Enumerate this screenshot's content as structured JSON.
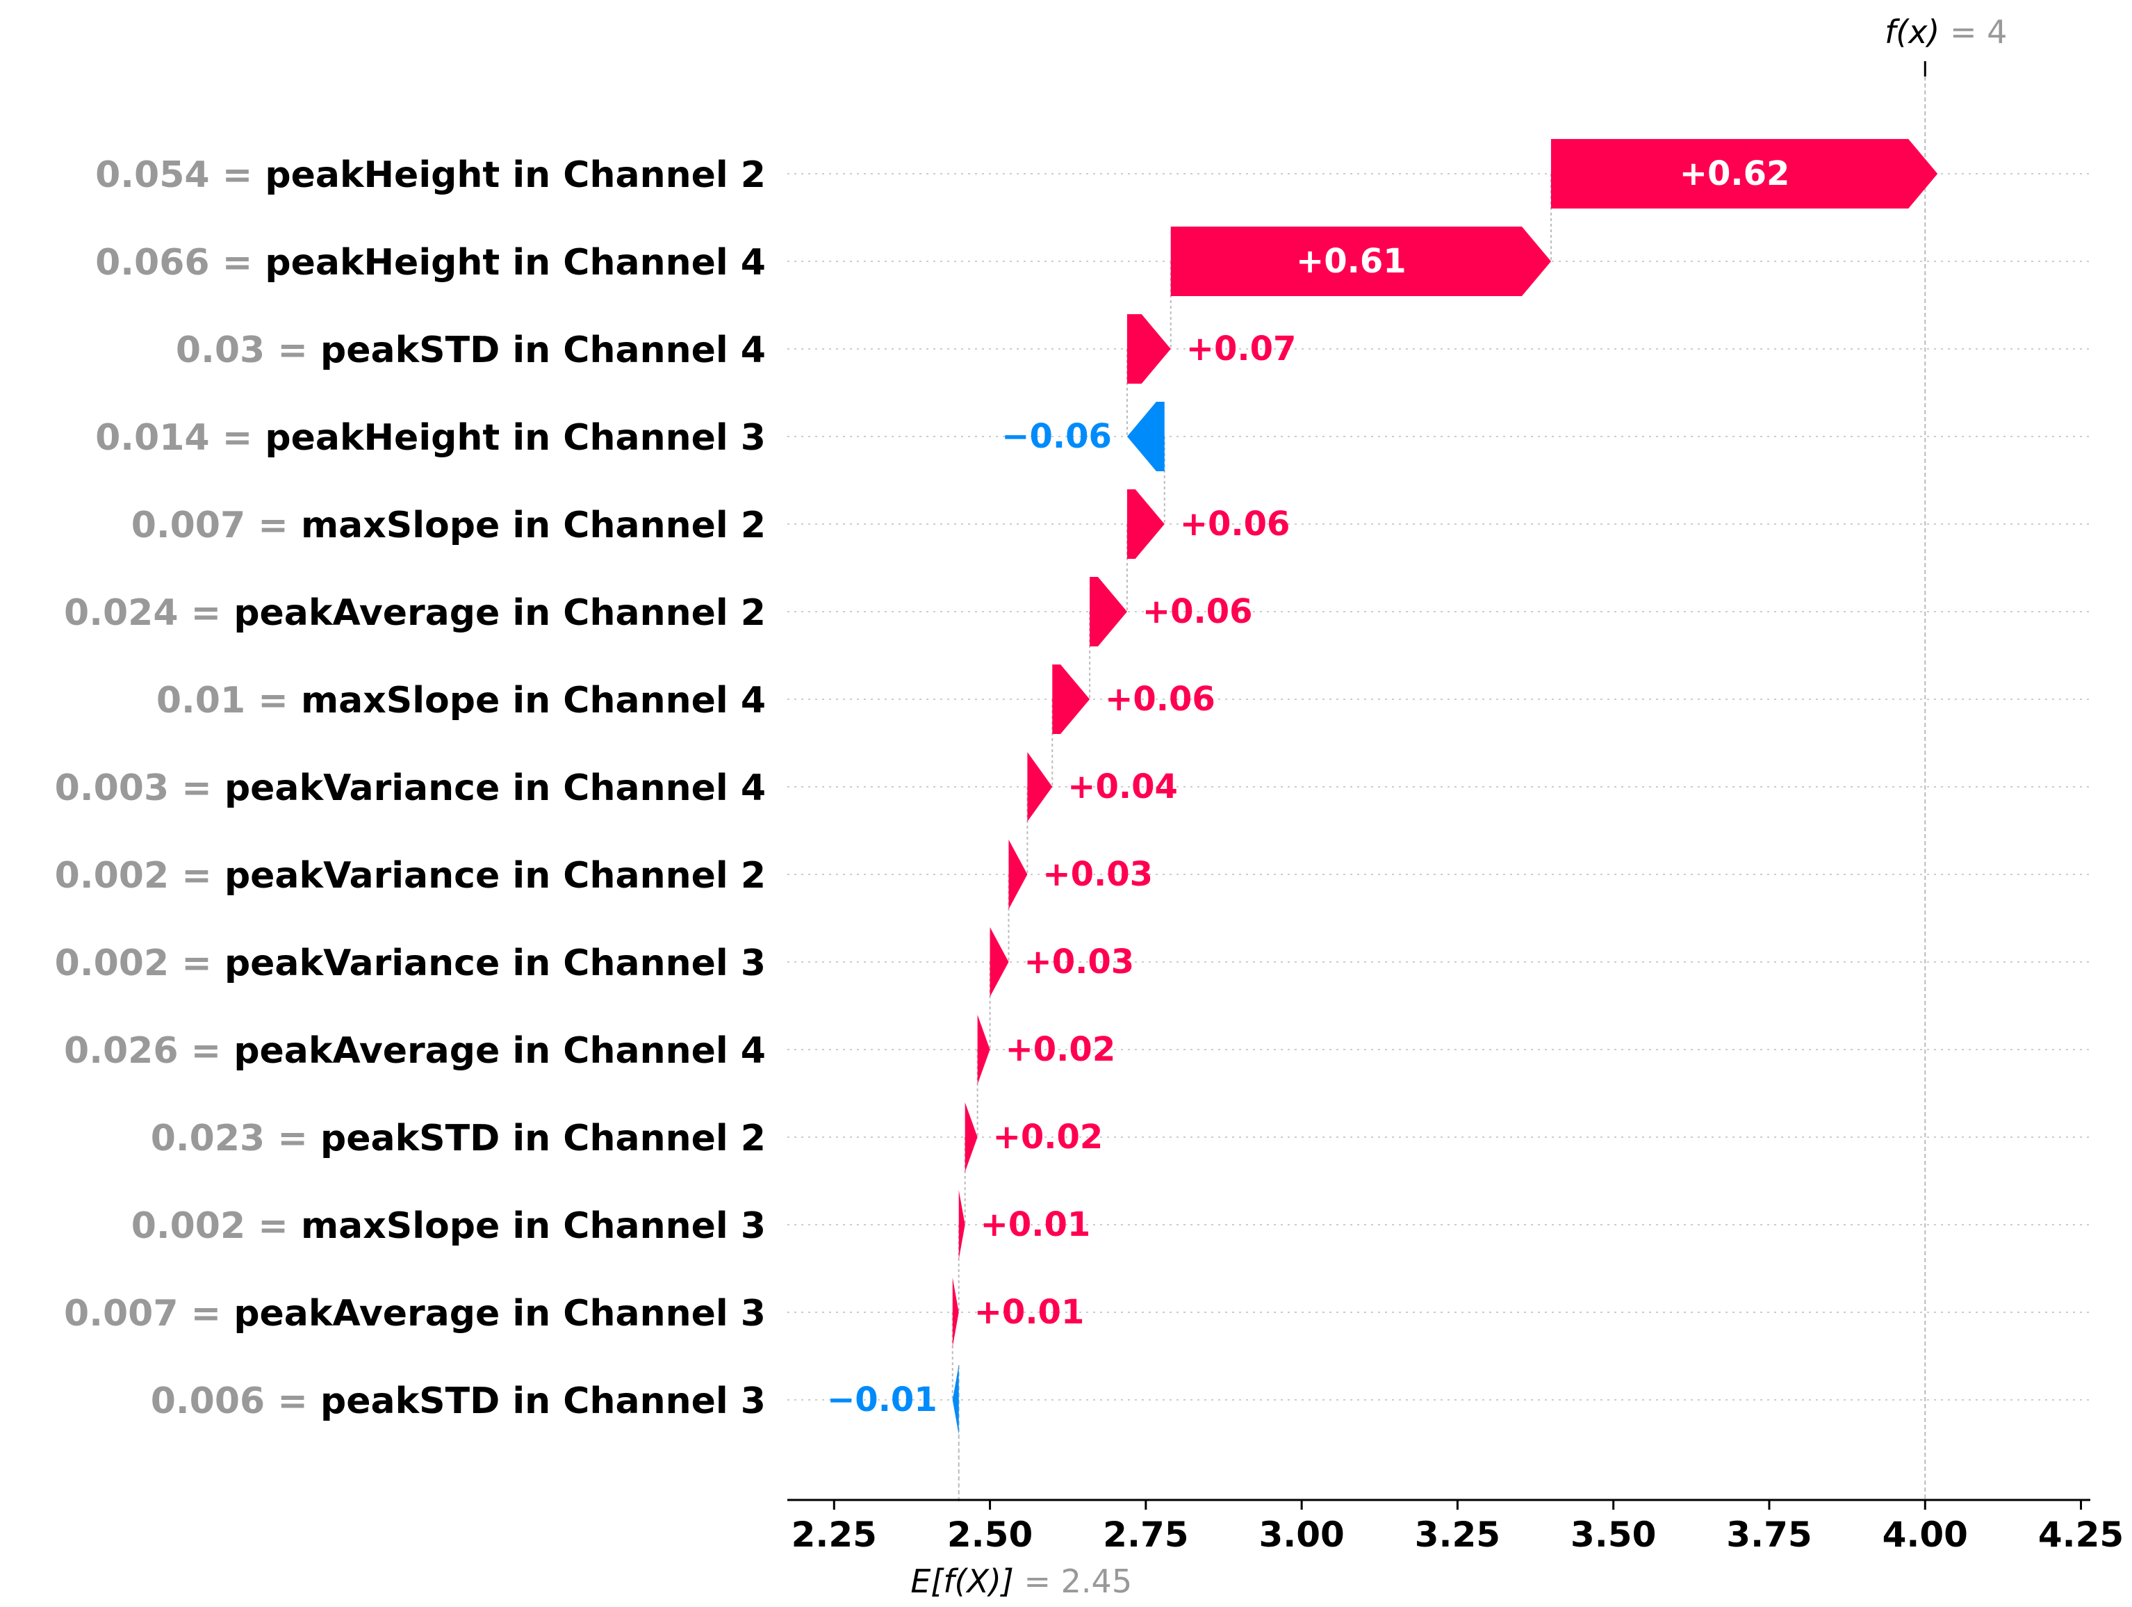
{
  "chart_data": {
    "type": "waterfall",
    "base_value": 2.45,
    "final_value": 4,
    "base_label": {
      "expr": "E[f(X)]",
      "eq": "= 2.45"
    },
    "final_label": {
      "expr": "f(x)",
      "eq": "= 4"
    },
    "x_ticks": [
      "2.25",
      "2.50",
      "2.75",
      "3.00",
      "3.25",
      "3.50",
      "3.75",
      "4.00",
      "4.25"
    ],
    "xlim": [
      2.175,
      4.265
    ],
    "features": [
      {
        "value": "0.054",
        "name": "peakHeight in Channel 2",
        "contribution": 0.62,
        "label": "+0.62"
      },
      {
        "value": "0.066",
        "name": "peakHeight in Channel 4",
        "contribution": 0.61,
        "label": "+0.61"
      },
      {
        "value": "0.03",
        "name": "peakSTD in Channel 4",
        "contribution": 0.07,
        "label": "+0.07"
      },
      {
        "value": "0.014",
        "name": "peakHeight in Channel 3",
        "contribution": -0.06,
        "label": "−0.06"
      },
      {
        "value": "0.007",
        "name": "maxSlope in Channel 2",
        "contribution": 0.06,
        "label": "+0.06"
      },
      {
        "value": "0.024",
        "name": "peakAverage in Channel 2",
        "contribution": 0.06,
        "label": "+0.06"
      },
      {
        "value": "0.01",
        "name": "maxSlope in Channel 4",
        "contribution": 0.06,
        "label": "+0.06"
      },
      {
        "value": "0.003",
        "name": "peakVariance in Channel 4",
        "contribution": 0.04,
        "label": "+0.04"
      },
      {
        "value": "0.002",
        "name": "peakVariance in Channel 2",
        "contribution": 0.03,
        "label": "+0.03"
      },
      {
        "value": "0.002",
        "name": "peakVariance in Channel 3",
        "contribution": 0.03,
        "label": "+0.03"
      },
      {
        "value": "0.026",
        "name": "peakAverage in Channel 4",
        "contribution": 0.02,
        "label": "+0.02"
      },
      {
        "value": "0.023",
        "name": "peakSTD in Channel 2",
        "contribution": 0.02,
        "label": "+0.02"
      },
      {
        "value": "0.002",
        "name": "maxSlope in Channel 3",
        "contribution": 0.01,
        "label": "+0.01"
      },
      {
        "value": "0.007",
        "name": "peakAverage in Channel 3",
        "contribution": 0.01,
        "label": "+0.01"
      },
      {
        "value": "0.006",
        "name": "peakSTD in Channel 3",
        "contribution": -0.01,
        "label": "−0.01"
      }
    ],
    "colors": {
      "positive": "#ff0051",
      "negative": "#008bfb",
      "value_gray": "#999999",
      "grid": "#cccccc"
    }
  }
}
